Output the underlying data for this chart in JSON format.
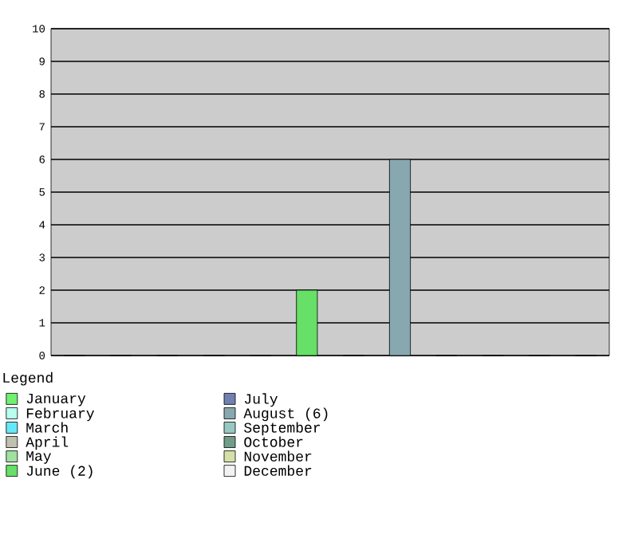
{
  "chart_data": {
    "type": "bar",
    "categories": [
      null
    ],
    "series": [
      {
        "name": "January",
        "color": "#70f070",
        "values": [
          0
        ]
      },
      {
        "name": "February",
        "color": "#b8fff0",
        "values": [
          0
        ]
      },
      {
        "name": "March",
        "color": "#66e8f8",
        "values": [
          0
        ]
      },
      {
        "name": "April",
        "color": "#c0c0b0",
        "values": [
          0
        ]
      },
      {
        "name": "May",
        "color": "#a0e0a0",
        "values": [
          0
        ]
      },
      {
        "name": "June (2)",
        "color": "#66e066",
        "values": [
          2
        ]
      },
      {
        "name": "July",
        "color": "#7080b0",
        "values": [
          0
        ]
      },
      {
        "name": "August (6)",
        "color": "#88a8b0",
        "values": [
          6
        ]
      },
      {
        "name": "September",
        "color": "#98c8c0",
        "values": [
          0
        ]
      },
      {
        "name": "October",
        "color": "#709c88",
        "values": [
          0
        ]
      },
      {
        "name": "November",
        "color": "#d4e0a8",
        "values": [
          0
        ]
      },
      {
        "name": "December",
        "color": "#f2f2f2",
        "values": [
          0
        ]
      }
    ],
    "ylim": [
      0,
      10
    ],
    "yticks": [
      0,
      1,
      2,
      3,
      4,
      5,
      6,
      7,
      8,
      9,
      10
    ],
    "grid": "y",
    "legend": "bottom",
    "legend_title": "Legend",
    "tick_labels": "y"
  }
}
